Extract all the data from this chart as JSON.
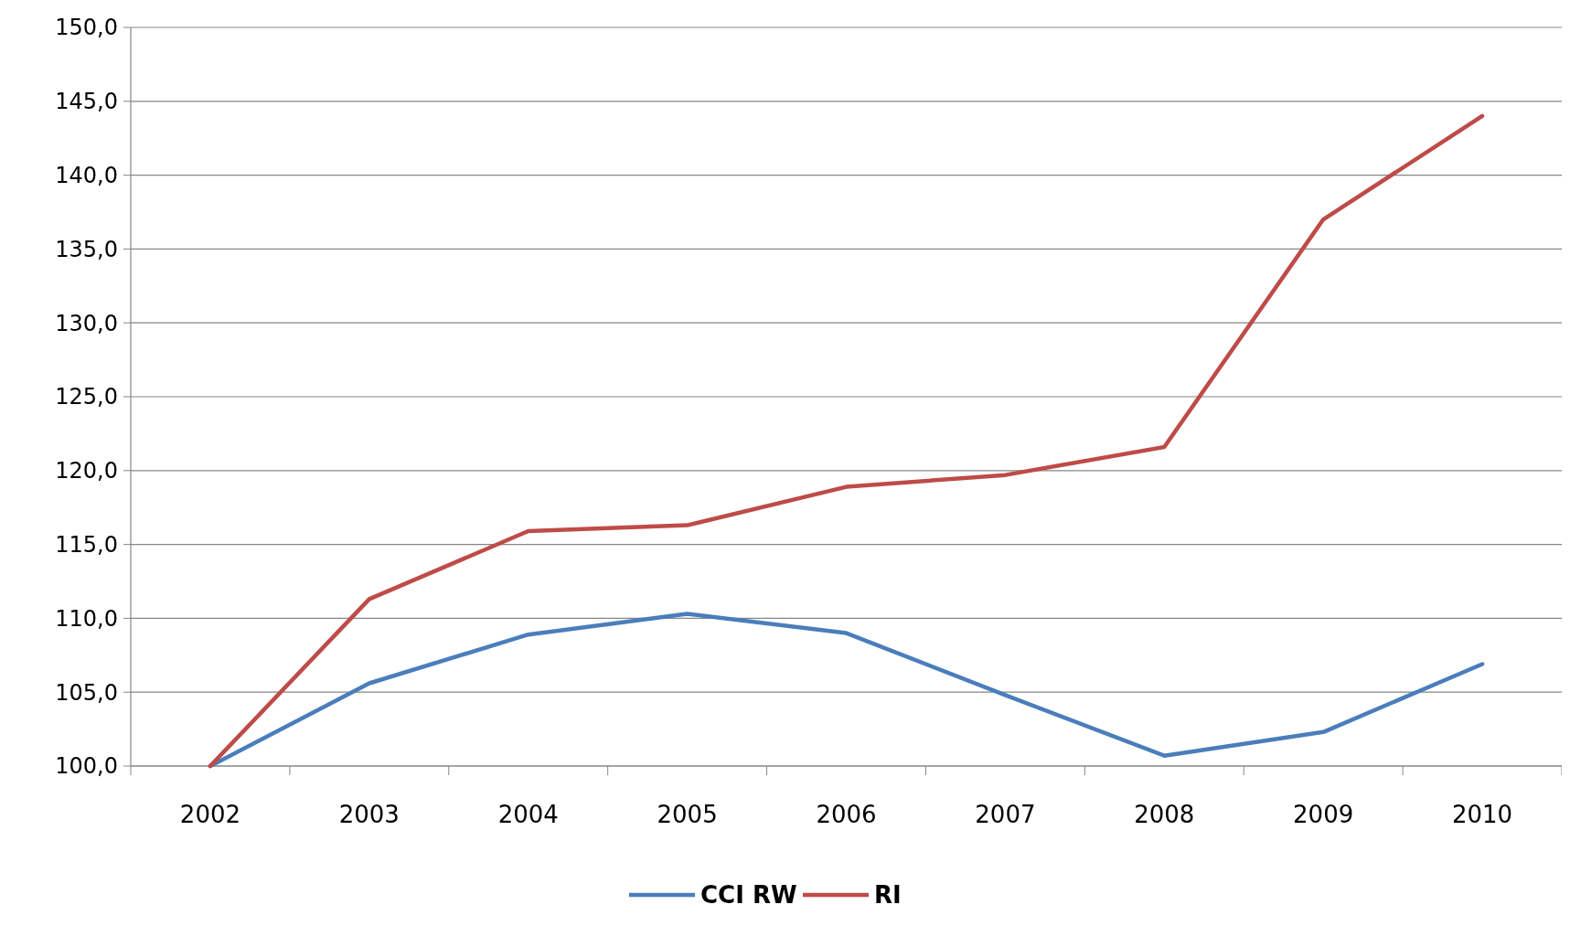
{
  "chart_data": {
    "type": "line",
    "categories": [
      "2002",
      "2003",
      "2004",
      "2005",
      "2006",
      "2007",
      "2008",
      "2009",
      "2010"
    ],
    "series": [
      {
        "name": "CCI RW",
        "color": "#4a7ebb",
        "values": [
          100,
          105.6,
          108.9,
          110.3,
          109.0,
          104.8,
          100.7,
          102.3,
          106.9
        ]
      },
      {
        "name": "RI",
        "color": "#be4b48",
        "values": [
          100,
          111.3,
          115.9,
          116.3,
          118.9,
          119.7,
          121.6,
          137.0,
          144.0
        ]
      }
    ],
    "ylim": [
      100,
      150
    ],
    "yticks": [
      {
        "value": 100,
        "label": "100,0"
      },
      {
        "value": 105,
        "label": "105,0"
      },
      {
        "value": 110,
        "label": "110,0"
      },
      {
        "value": 115,
        "label": "115,0"
      },
      {
        "value": 120,
        "label": "120,0"
      },
      {
        "value": 125,
        "label": "125,0"
      },
      {
        "value": 130,
        "label": "130,0"
      },
      {
        "value": 135,
        "label": "135,0"
      },
      {
        "value": 140,
        "label": "140,0"
      },
      {
        "value": 145,
        "label": "145,0"
      },
      {
        "value": 150,
        "label": "150,0"
      }
    ],
    "grid": "y",
    "legend": "bottom",
    "marker": "none",
    "line_style": "solid"
  }
}
